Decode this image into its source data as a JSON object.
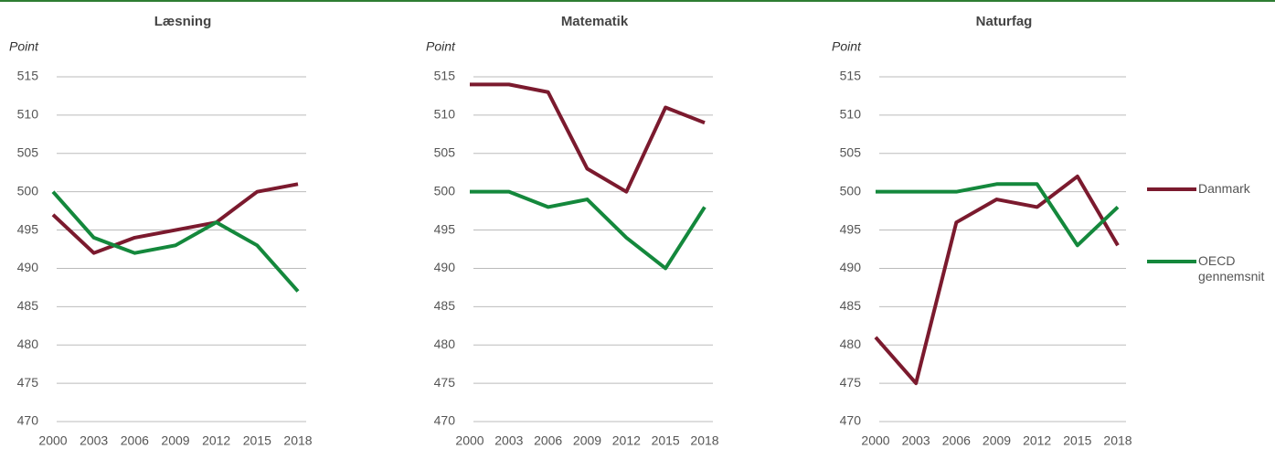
{
  "chart_data": [
    {
      "type": "line",
      "title": "Læsning",
      "y_label": "Point",
      "categories": [
        "2000",
        "2003",
        "2006",
        "2009",
        "2012",
        "2015",
        "2018"
      ],
      "series": [
        {
          "color": "#7b1a2e",
          "values": [
            497,
            492,
            494,
            495,
            496,
            500,
            501
          ]
        },
        {
          "color": "#14883c",
          "values": [
            500,
            494,
            492,
            493,
            496,
            493,
            487
          ]
        }
      ],
      "ylim": [
        470,
        515
      ],
      "yticks": [
        470,
        475,
        480,
        485,
        490,
        495,
        500,
        505,
        510,
        515
      ],
      "grid": true
    },
    {
      "type": "line",
      "title": "Matematik",
      "y_label": "Point",
      "categories": [
        "2000",
        "2003",
        "2006",
        "2009",
        "2012",
        "2015",
        "2018"
      ],
      "series": [
        {
          "color": "#7b1a2e",
          "values": [
            514,
            514,
            513,
            503,
            500,
            511,
            509
          ]
        },
        {
          "color": "#14883c",
          "values": [
            500,
            500,
            498,
            499,
            494,
            490,
            498
          ]
        }
      ],
      "ylim": [
        470,
        515
      ],
      "yticks": [
        470,
        475,
        480,
        485,
        490,
        495,
        500,
        505,
        510,
        515
      ],
      "grid": true
    },
    {
      "type": "line",
      "title": "Naturfag",
      "y_label": "Point",
      "categories": [
        "2000",
        "2003",
        "2006",
        "2009",
        "2012",
        "2015",
        "2018"
      ],
      "series": [
        {
          "name": "Danmark",
          "color": "#7b1a2e",
          "values": [
            481,
            475,
            496,
            499,
            498,
            502,
            493
          ]
        },
        {
          "name": "OECD gennemsnit",
          "color": "#14883c",
          "values": [
            500,
            500,
            500,
            501,
            501,
            493,
            498
          ]
        }
      ],
      "ylim": [
        470,
        515
      ],
      "yticks": [
        470,
        475,
        480,
        485,
        490,
        495,
        500,
        505,
        510,
        515
      ],
      "grid": true,
      "legend": "right"
    }
  ]
}
